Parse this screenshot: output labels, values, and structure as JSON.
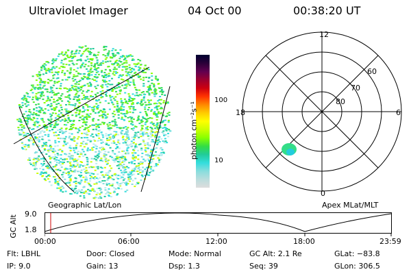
{
  "header": {
    "title": "Ultraviolet Imager",
    "date": "04 Oct 00",
    "time": "00:38:20 UT"
  },
  "colorbar": {
    "title": "photon cm⁻²s⁻¹",
    "ticks": [
      "100",
      "10"
    ],
    "colors": [
      "#000030",
      "#2a0038",
      "#600050",
      "#9a0030",
      "#cc0010",
      "#ff3300",
      "#ff8800",
      "#ffcc00",
      "#ffff00",
      "#ccff00",
      "#88ff00",
      "#33dd44",
      "#22cc99",
      "#33dddd",
      "#88dddd",
      "#bbdddd",
      "#dddddd"
    ]
  },
  "polar": {
    "labels": {
      "top": "12",
      "left": "18",
      "right": "6",
      "bottom": "0"
    },
    "rings": [
      "60",
      "70",
      "80"
    ]
  },
  "map_labels": {
    "left": "Geographic Lat/Lon",
    "right": "Apex MLat/MLT"
  },
  "gc_plot": {
    "ylabel": "GC Alt",
    "yticks": [
      "9.0",
      "1.8"
    ],
    "xticks": [
      "00:00",
      "06:00",
      "12:00",
      "18:00",
      "23:59"
    ]
  },
  "info": {
    "flt": "Flt: LBHL",
    "ip": "IP:  9.0",
    "door": "Door: Closed",
    "gain": "Gain: 13",
    "mode": "Mode: Normal",
    "dsp": "Dsp:     1.3",
    "gcalt": "GC Alt: 2.1 Re",
    "seq": "Seq: 39",
    "glat": "GLat: −83.8",
    "glon": "GLon: 306.5"
  }
}
